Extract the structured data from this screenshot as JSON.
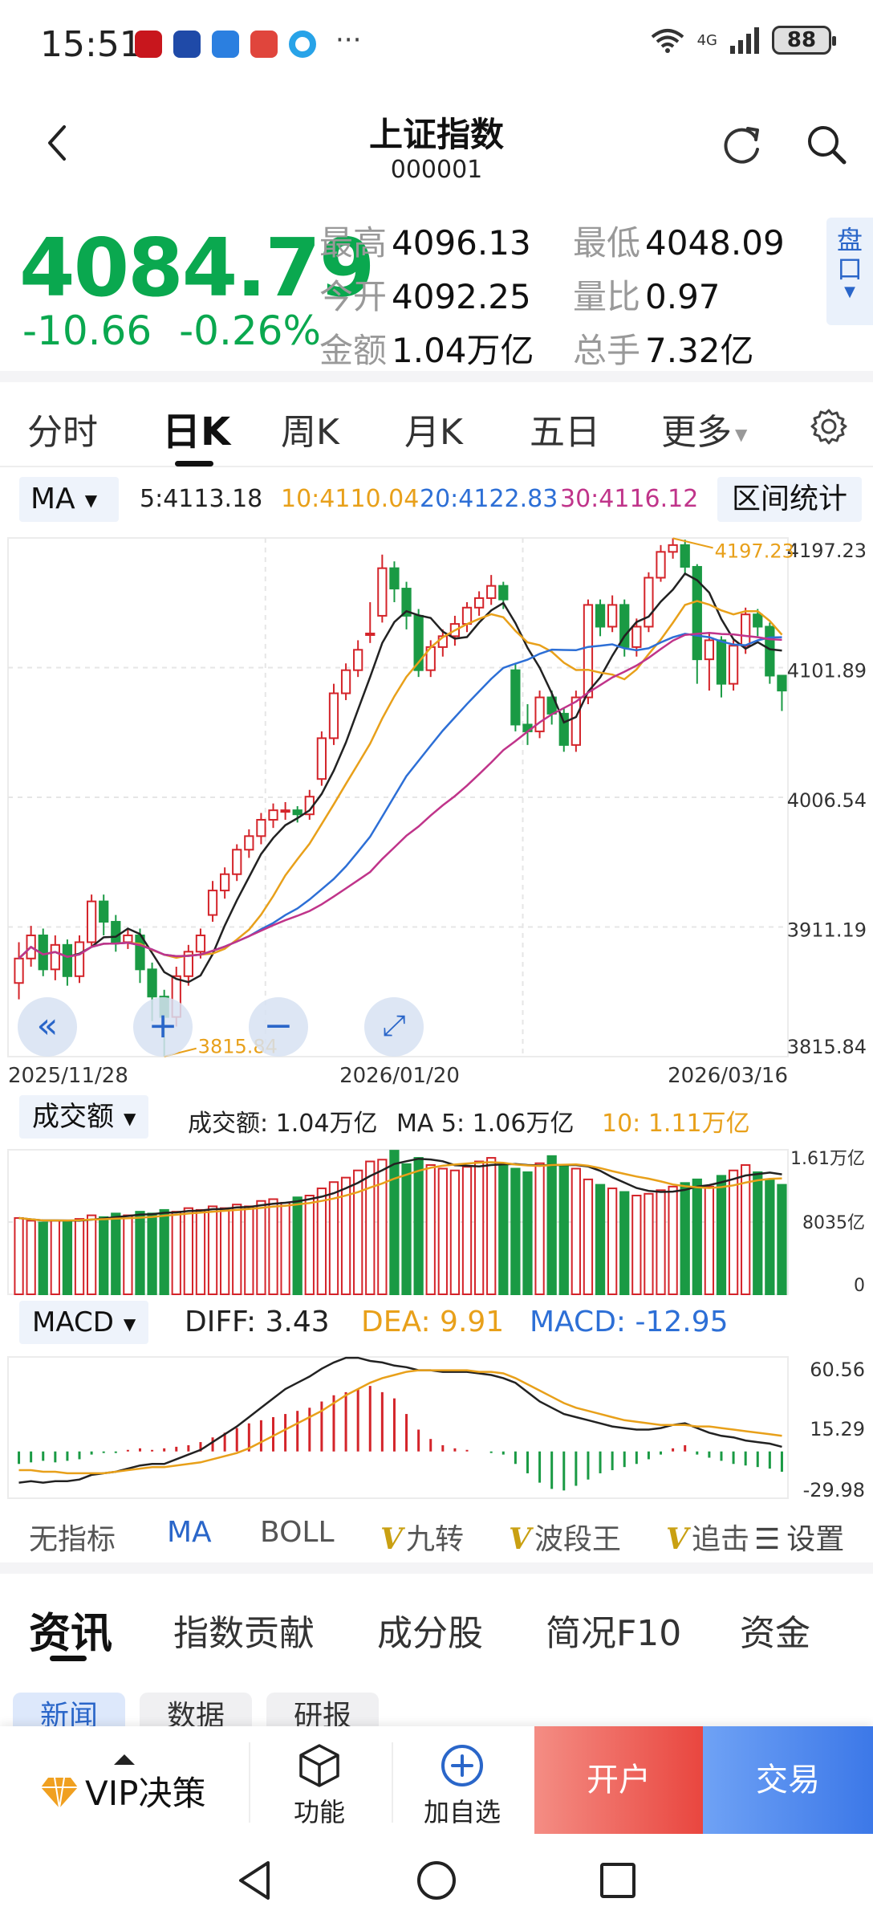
{
  "status": {
    "time": "15:51",
    "network": "4G",
    "battery": "88",
    "more": "···"
  },
  "header": {
    "title": "上证指数",
    "code": "000001"
  },
  "quote": {
    "price": "4084.79",
    "change": "-10.66",
    "change_pct": "-0.26%",
    "stats": [
      {
        "label": "最高",
        "value": "4096.13"
      },
      {
        "label": "最低",
        "value": "4048.09"
      },
      {
        "label": "今开",
        "value": "4092.25"
      },
      {
        "label": "量比",
        "value": "0.97"
      },
      {
        "label": "金额",
        "value": "1.04万亿"
      },
      {
        "label": "总手",
        "value": "7.32亿"
      }
    ],
    "pankou_label": "盘口"
  },
  "period_tabs": {
    "items": [
      "分时",
      "日K",
      "周K",
      "月K",
      "五日",
      "更多"
    ],
    "active": "日K"
  },
  "ma_bar": {
    "select": "MA",
    "ma5": "5:4113.18",
    "ma10": "10:4110.04",
    "ma20": "20:4122.83",
    "ma30": "30:4116.12",
    "range_stats": "区间统计"
  },
  "colors": {
    "up": "#d4242a",
    "down": "#1a9a44",
    "ma5": "#222222",
    "ma10": "#e8a01a",
    "ma20": "#2d6fd6",
    "ma30": "#c0348a",
    "accent": "#2a66c9"
  },
  "icons": [
    "back-icon",
    "refresh-icon",
    "search-icon",
    "gear-icon",
    "rewind-icon",
    "zoom-in-icon",
    "zoom-out-icon",
    "expand-icon",
    "gem-icon",
    "cube-icon",
    "add-circle-icon",
    "nav-back-icon",
    "nav-home-icon",
    "nav-recents-icon"
  ],
  "chart_data": [
    {
      "type": "candlestick",
      "y_axis_labels": [
        "4197.23",
        "4101.89",
        "4006.54",
        "3911.19",
        "3815.84"
      ],
      "x_axis_labels": [
        "2025/11/28",
        "2026/01/20",
        "2026/03/16"
      ],
      "ylim": [
        3815.84,
        4197.23
      ],
      "high_annotation": "4197.23",
      "low_annotation": "3815.84",
      "close": [
        3888,
        3905,
        3880,
        3898,
        3875,
        3900,
        3930,
        3915,
        3900,
        3905,
        3880,
        3860,
        3845,
        3875,
        3893,
        3905,
        3938,
        3950,
        3968,
        3978,
        3990,
        3997,
        3997,
        3994,
        4007,
        4050,
        4083,
        4100,
        4115,
        4127,
        4175,
        4160,
        4140,
        4100,
        4117,
        4125,
        4134,
        4146,
        4153,
        4162,
        4152,
        4060,
        4055,
        4080,
        4068,
        4045,
        4080,
        4148,
        4132,
        4148,
        4117,
        4132,
        4168,
        4187,
        4192,
        4176,
        4108,
        4122,
        4090,
        4118,
        4141,
        4132,
        4096,
        4085
      ],
      "open": [
        3870,
        3888,
        3905,
        3880,
        3898,
        3875,
        3900,
        3930,
        3915,
        3900,
        3905,
        3880,
        3860,
        3845,
        3875,
        3893,
        3920,
        3938,
        3950,
        3968,
        3978,
        3990,
        3997,
        3997,
        3994,
        4020,
        4050,
        4083,
        4100,
        4127,
        4140,
        4175,
        4160,
        4140,
        4100,
        4117,
        4125,
        4134,
        4146,
        4153,
        4162,
        4100,
        4060,
        4055,
        4080,
        4068,
        4045,
        4080,
        4148,
        4132,
        4148,
        4117,
        4132,
        4168,
        4187,
        4192,
        4176,
        4108,
        4122,
        4090,
        4118,
        4141,
        4132,
        4096
      ],
      "high": [
        3900,
        3912,
        3910,
        3905,
        3902,
        3905,
        3935,
        3935,
        3920,
        3910,
        3910,
        3885,
        3865,
        3882,
        3898,
        3910,
        3945,
        3955,
        3972,
        3983,
        3995,
        4002,
        4003,
        4000,
        4012,
        4055,
        4090,
        4105,
        4122,
        4150,
        4185,
        4180,
        4165,
        4145,
        4122,
        4130,
        4140,
        4150,
        4158,
        4170,
        4165,
        4105,
        4075,
        4085,
        4085,
        4072,
        4085,
        4152,
        4152,
        4155,
        4152,
        4138,
        4172,
        4192,
        4197,
        4196,
        4178,
        4128,
        4125,
        4122,
        4146,
        4145,
        4135,
        4095
      ],
      "low": [
        3858,
        3882,
        3875,
        3872,
        3868,
        3870,
        3896,
        3905,
        3893,
        3895,
        3870,
        3842,
        3816,
        3838,
        3868,
        3888,
        3915,
        3932,
        3945,
        3962,
        3972,
        3984,
        3990,
        3988,
        3990,
        4015,
        4045,
        4078,
        4095,
        4120,
        4135,
        4150,
        4130,
        4095,
        4095,
        4110,
        4118,
        4128,
        4140,
        4148,
        4145,
        4055,
        4045,
        4050,
        4060,
        4040,
        4040,
        4075,
        4125,
        4128,
        4110,
        4110,
        4128,
        4165,
        4182,
        4170,
        4090,
        4085,
        4080,
        4085,
        4112,
        4125,
        4090,
        4070
      ],
      "series_names": [
        "5",
        "10",
        "20",
        "30"
      ]
    },
    {
      "type": "bar",
      "title": "成交额",
      "summary": "成交额: 1.04万亿",
      "ma5": "MA 5: 1.06万亿",
      "ma10": "10: 1.11万亿",
      "y_axis_labels": [
        "1.61万亿",
        "8035亿",
        "0"
      ],
      "ylim": [
        0,
        1.61
      ],
      "values": [
        0.85,
        0.82,
        0.8,
        0.82,
        0.82,
        0.84,
        0.88,
        0.86,
        0.9,
        0.88,
        0.92,
        0.9,
        0.94,
        0.92,
        0.96,
        0.94,
        0.98,
        0.96,
        1.0,
        0.98,
        1.04,
        1.06,
        1.02,
        1.08,
        1.1,
        1.18,
        1.25,
        1.3,
        1.38,
        1.48,
        1.5,
        1.6,
        1.45,
        1.52,
        1.44,
        1.4,
        1.38,
        1.42,
        1.48,
        1.52,
        1.44,
        1.4,
        1.36,
        1.46,
        1.54,
        1.44,
        1.4,
        1.28,
        1.22,
        1.18,
        1.14,
        1.1,
        1.12,
        1.16,
        1.2,
        1.24,
        1.28,
        1.2,
        1.32,
        1.38,
        1.44,
        1.36,
        1.28,
        1.22
      ]
    },
    {
      "type": "bar",
      "title": "MACD",
      "diff": "DIFF: 3.43",
      "dea": "DEA: 9.91",
      "macd": "MACD: -12.95",
      "y_axis_labels": [
        "60.56",
        "15.29",
        "-29.98"
      ],
      "ylim": [
        -29.98,
        60.56
      ],
      "hist": [
        -8,
        -7,
        -6,
        -7,
        -6,
        -5,
        -2,
        -1,
        -1,
        1,
        2,
        1,
        2,
        3,
        4,
        6,
        9,
        12,
        15,
        18,
        20,
        22,
        24,
        26,
        28,
        32,
        36,
        38,
        40,
        42,
        38,
        34,
        24,
        14,
        8,
        4,
        2,
        1,
        0,
        -1,
        -2,
        -8,
        -14,
        -20,
        -24,
        -25,
        -22,
        -18,
        -14,
        -12,
        -10,
        -8,
        -5,
        -2,
        2,
        4,
        -2,
        -4,
        -6,
        -8,
        -9,
        -10,
        -11,
        -13
      ],
      "diff_values": [
        -20,
        -19,
        -20,
        -19,
        -19,
        -18,
        -15,
        -14,
        -13,
        -11,
        -9,
        -8,
        -8,
        -5,
        -2,
        1,
        6,
        11,
        16,
        22,
        28,
        34,
        40,
        44,
        48,
        53,
        57,
        60,
        60,
        58,
        57,
        55,
        54,
        52,
        52,
        51,
        51,
        51,
        50,
        49,
        47,
        44,
        38,
        32,
        28,
        24,
        22,
        20,
        18,
        16,
        15,
        14,
        14,
        15,
        17,
        18,
        15,
        12,
        10,
        9,
        7,
        6,
        5,
        3
      ],
      "dea_values": [
        -12,
        -12,
        -13,
        -13,
        -14,
        -14,
        -14,
        -14,
        -13,
        -12,
        -11,
        -10,
        -10,
        -9,
        -8,
        -7,
        -5,
        -3,
        -1,
        2,
        6,
        10,
        14,
        18,
        22,
        26,
        31,
        36,
        40,
        44,
        47,
        49,
        51,
        52,
        52,
        52,
        52,
        52,
        51,
        51,
        50,
        47,
        43,
        39,
        35,
        31,
        28,
        26,
        24,
        22,
        20,
        19,
        18,
        17,
        17,
        17,
        16,
        16,
        15,
        14,
        13,
        12,
        11,
        10
      ]
    }
  ],
  "indicator_tabs": {
    "items": [
      {
        "v": "",
        "label": "无指标"
      },
      {
        "v": "",
        "label": "MA"
      },
      {
        "v": "",
        "label": "BOLL"
      },
      {
        "v": "V",
        "label": "九转"
      },
      {
        "v": "V",
        "label": "波段王"
      },
      {
        "v": "V",
        "label": "追击"
      }
    ],
    "settings": "设置"
  },
  "news_tabs": {
    "items": [
      "资讯",
      "指数贡献",
      "成分股",
      "简况F10",
      "资金"
    ],
    "sub": [
      "新闻",
      "数据",
      "研报"
    ]
  },
  "bottom_bar": {
    "vip": "VIP决策",
    "function": "功能",
    "add_watch": "加自选",
    "open_account": "开户",
    "trade": "交易"
  }
}
